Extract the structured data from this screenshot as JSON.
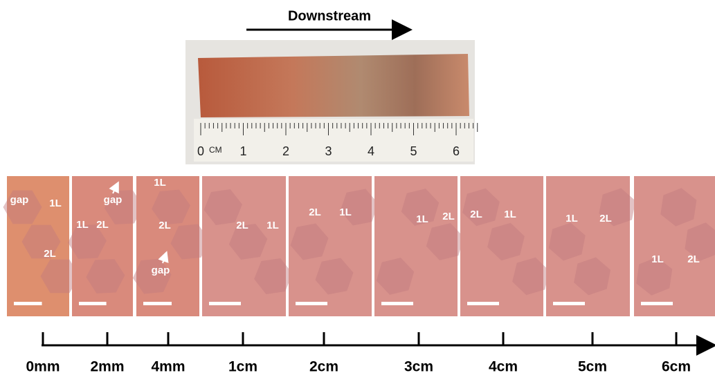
{
  "header": {
    "title": "Downstream"
  },
  "photo": {
    "ruler_unit": "CM",
    "ruler_labels": [
      "0",
      "1",
      "2",
      "3",
      "4",
      "5",
      "6"
    ]
  },
  "panels": [
    {
      "labels": [
        "gap",
        "1L",
        "2L"
      ]
    },
    {
      "labels": [
        "gap",
        "1L",
        "2L"
      ]
    },
    {
      "labels": [
        "1L",
        "2L",
        "gap"
      ]
    },
    {
      "labels": [
        "2L",
        "1L"
      ]
    },
    {
      "labels": [
        "2L",
        "1L"
      ]
    },
    {
      "labels": [
        "1L",
        "2L"
      ]
    },
    {
      "labels": [
        "2L",
        "1L"
      ]
    },
    {
      "labels": [
        "1L",
        "2L"
      ]
    },
    {
      "labels": [
        "1L",
        "2L"
      ]
    }
  ],
  "axis": {
    "labels": [
      "0mm",
      "2mm",
      "4mm",
      "1cm",
      "2cm",
      "3cm",
      "4cm",
      "5cm",
      "6cm"
    ]
  }
}
